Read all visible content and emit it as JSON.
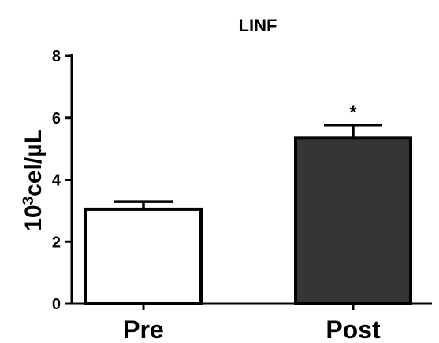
{
  "chart_data": {
    "type": "bar",
    "title": "LINF",
    "xlabel": "",
    "ylabel": {
      "base": "10",
      "exponent": "3",
      "unit": "cel/µL"
    },
    "categories": [
      "Pre",
      "Post"
    ],
    "values": [
      3.05,
      5.35
    ],
    "error": [
      0.25,
      0.42
    ],
    "ylim": [
      0,
      8
    ],
    "yticks": [
      "0",
      "2",
      "4",
      "6",
      "8"
    ],
    "annotations": [
      "",
      "*"
    ],
    "bar_colors": [
      "#ffffff",
      "#353535"
    ],
    "edge_color": "#000000",
    "grid": false,
    "legend": "none"
  }
}
